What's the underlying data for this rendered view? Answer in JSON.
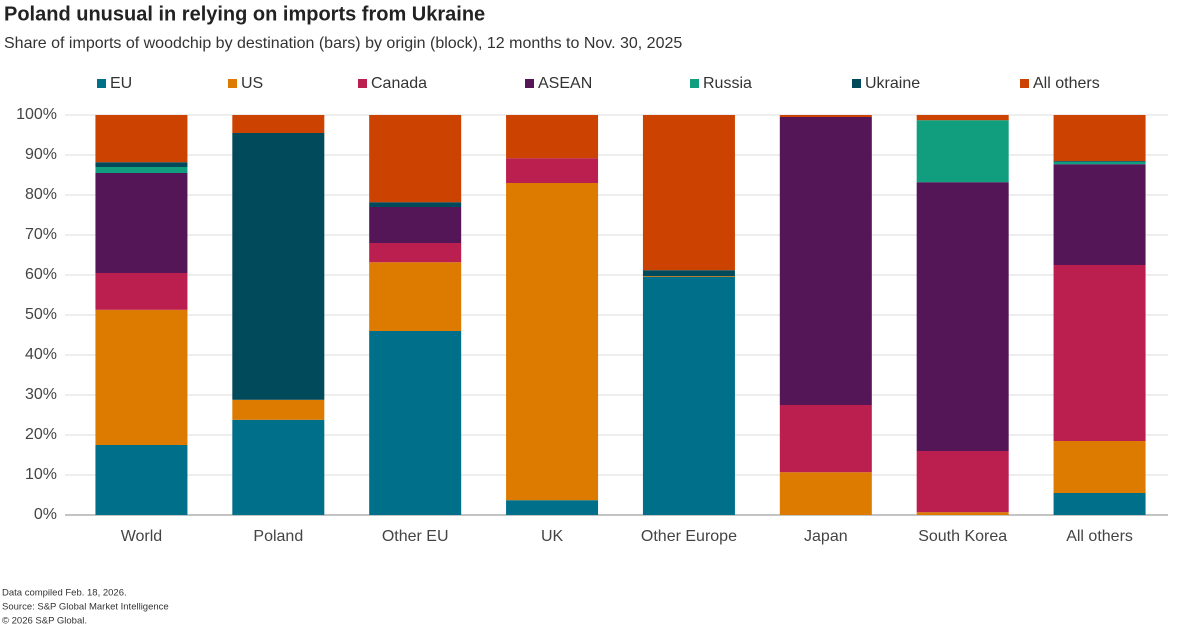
{
  "chart_data": {
    "type": "stacked_bar",
    "title": "Poland unusual in relying on imports from Ukraine",
    "subtitle": "Share of imports of woodchip by destination (bars) by origin (block), 12 months to Nov. 30, 2025",
    "categories": [
      "World",
      "Poland",
      "Other EU",
      "UK",
      "Other Europe",
      "Japan",
      "South Korea",
      "All others"
    ],
    "series": [
      {
        "name": "EU",
        "color": "#006f8a",
        "values": [
          17.5,
          23.8,
          46,
          3.7,
          59.5,
          0,
          0,
          5.5
        ]
      },
      {
        "name": "US",
        "color": "#dd7a00",
        "values": [
          33.8,
          5,
          17.2,
          79.3,
          0.2,
          10.7,
          0.7,
          13
        ]
      },
      {
        "name": "Canada",
        "color": "#bb1f50",
        "values": [
          9.2,
          0,
          4.8,
          6.2,
          0,
          16.8,
          15.3,
          44
        ]
      },
      {
        "name": "ASEAN",
        "color": "#541656",
        "values": [
          25,
          0,
          9,
          0,
          0,
          72,
          67.2,
          25.2
        ]
      },
      {
        "name": "Russia",
        "color": "#109e7e",
        "values": [
          1.5,
          0,
          0,
          0,
          0,
          0,
          15.5,
          0.6
        ]
      },
      {
        "name": "Ukraine",
        "color": "#004a5c",
        "values": [
          1.2,
          66.7,
          1.2,
          0,
          1.5,
          0,
          0,
          0.2
        ]
      },
      {
        "name": "All others",
        "color": "#cc4200",
        "values": [
          11.8,
          4.5,
          21.8,
          10.8,
          38.8,
          0.5,
          1.3,
          11.5
        ]
      }
    ],
    "ylim": [
      0,
      100
    ],
    "yticks": [
      {
        "value": 0,
        "label": "0%"
      },
      {
        "value": 10,
        "label": "10%"
      },
      {
        "value": 20,
        "label": "20%"
      },
      {
        "value": 30,
        "label": "30%"
      },
      {
        "value": 40,
        "label": "40%"
      },
      {
        "value": 50,
        "label": "50%"
      },
      {
        "value": 60,
        "label": "60%"
      },
      {
        "value": 70,
        "label": "70%"
      },
      {
        "value": 80,
        "label": "80%"
      },
      {
        "value": 90,
        "label": "90%"
      },
      {
        "value": 100,
        "label": "100%"
      }
    ],
    "grid": true,
    "legend": "top",
    "notes": [
      "Data compiled Feb. 18, 2026.",
      "Source: S&P Global Market Intelligence",
      "© 2026 S&P Global."
    ]
  }
}
